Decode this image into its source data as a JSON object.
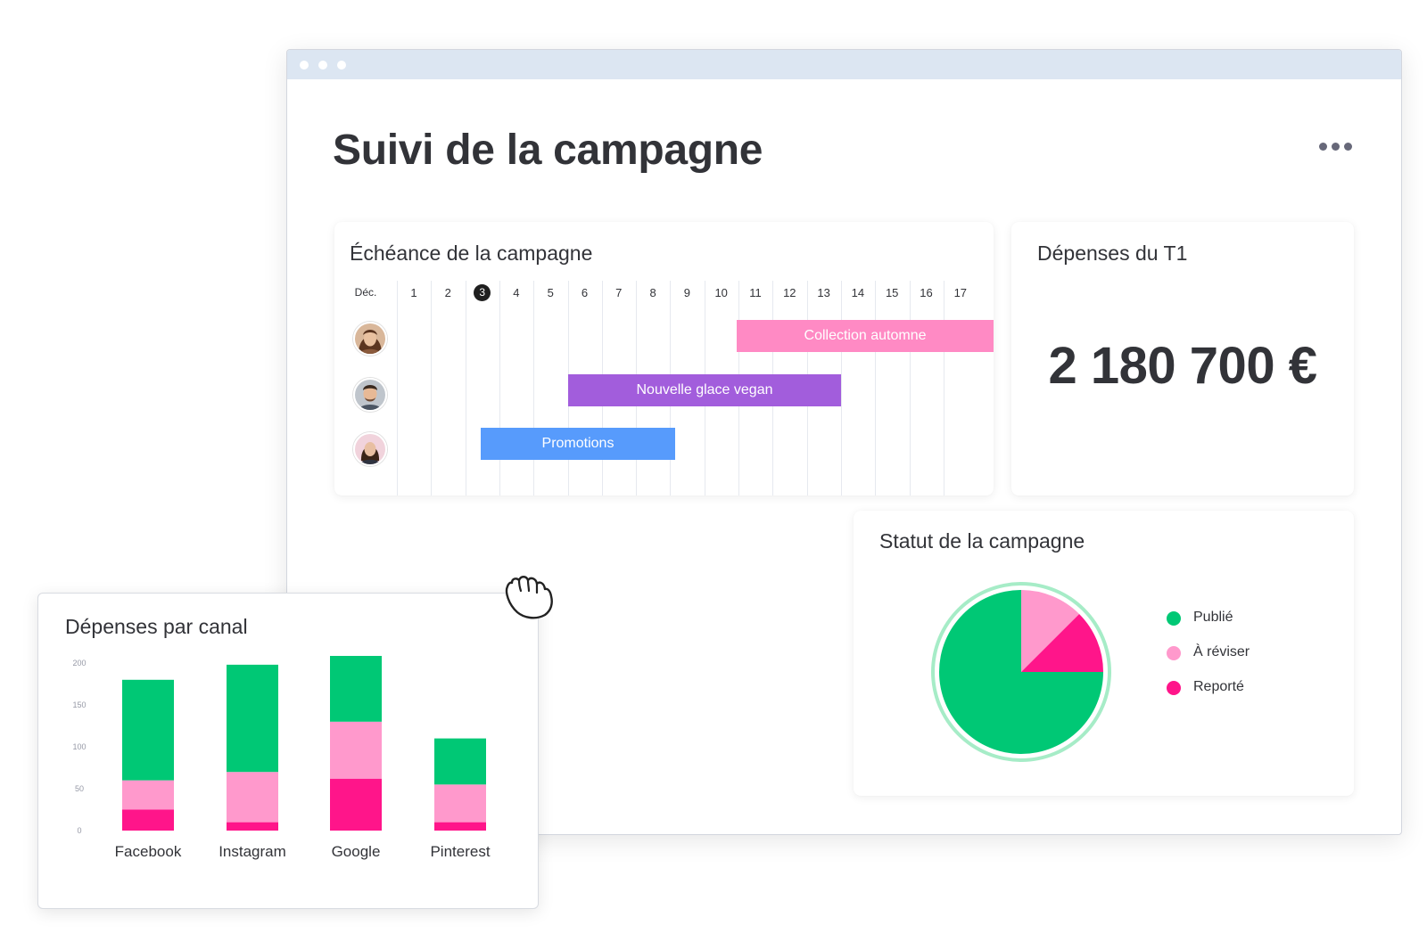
{
  "page": {
    "title": "Suivi de la campagne"
  },
  "timeline_card": {
    "title": "Échéance de la campagne",
    "month_label": "Déc.",
    "days": [
      "1",
      "2",
      "3",
      "4",
      "5",
      "6",
      "7",
      "8",
      "9",
      "10",
      "11",
      "12",
      "13",
      "14",
      "15",
      "16",
      "17"
    ],
    "today": "3",
    "tasks": [
      {
        "label": "Collection automne",
        "color": "#ff8ac4",
        "avatar": "avatar-woman-1"
      },
      {
        "label": "Nouvelle glace vegan",
        "color": "#a25ddc",
        "avatar": "avatar-man"
      },
      {
        "label": "Promotions",
        "color": "#579bfc",
        "avatar": "avatar-woman-2"
      }
    ]
  },
  "spend_card": {
    "title": "Dépenses du T1",
    "amount": "2 180 700 €"
  },
  "status_card": {
    "title": "Statut de la campagne",
    "legend": [
      {
        "label": "Publié",
        "color": "#00c875"
      },
      {
        "label": "À réviser",
        "color": "#ff99cc"
      },
      {
        "label": "Reporté",
        "color": "#ff158a"
      }
    ]
  },
  "channel_card": {
    "title": "Dépenses par canal"
  },
  "chart_data": [
    {
      "type": "pie",
      "title": "Statut de la campagne",
      "labels": [
        "Publié",
        "À réviser",
        "Reporté"
      ],
      "values": [
        75,
        12.5,
        12.5
      ],
      "colors": [
        "#00c875",
        "#ff99cc",
        "#ff158a"
      ],
      "legend_position": "right"
    },
    {
      "type": "bar",
      "stacked": true,
      "title": "Dépenses par canal",
      "categories": [
        "Facebook",
        "Instagram",
        "Google",
        "Pinterest"
      ],
      "series": [
        {
          "name": "Reporté",
          "color": "#ff158a",
          "values": [
            25,
            10,
            62,
            10
          ]
        },
        {
          "name": "À réviser",
          "color": "#ff99cc",
          "values": [
            35,
            60,
            68,
            45
          ]
        },
        {
          "name": "Publié",
          "color": "#00c875",
          "values": [
            120,
            128,
            80,
            55
          ]
        }
      ],
      "yticks": [
        "0",
        "50",
        "100",
        "150",
        "200"
      ],
      "ylim": [
        0,
        200
      ],
      "grid": false,
      "legend": "none"
    }
  ]
}
